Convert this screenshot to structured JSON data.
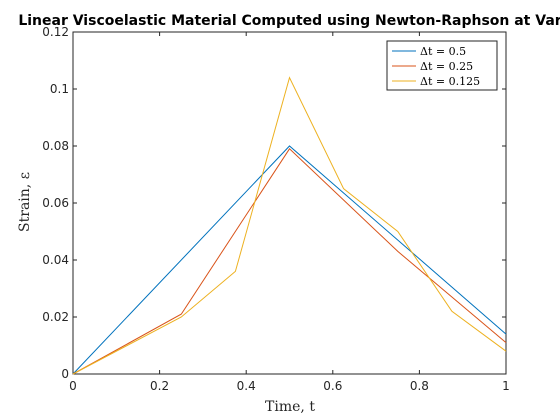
{
  "chart_data": {
    "type": "line",
    "title": "Linear Viscoelastic Material Computed using Newton-Raphson at Var",
    "xlabel": "Time, t",
    "ylabel": "Strain, ε",
    "xlim": [
      0,
      1
    ],
    "ylim": [
      0,
      0.12
    ],
    "xticks": [
      "0",
      "0.2",
      "0.4",
      "0.6",
      "0.8",
      "1"
    ],
    "yticks": [
      "0",
      "0.02",
      "0.04",
      "0.06",
      "0.08",
      "0.1",
      "0.12"
    ],
    "grid": false,
    "legend_position": "top-right",
    "series": [
      {
        "name": "Δt = 0.5",
        "color": "#0072BD",
        "x": [
          0,
          0.5,
          1
        ],
        "y": [
          0,
          0.08,
          0.014
        ]
      },
      {
        "name": "Δt = 0.25",
        "color": "#D95319",
        "x": [
          0,
          0.25,
          0.5,
          0.75,
          1
        ],
        "y": [
          0,
          0.021,
          0.079,
          0.043,
          0.011
        ]
      },
      {
        "name": "Δt = 0.125",
        "color": "#EDB120",
        "x": [
          0,
          0.125,
          0.25,
          0.375,
          0.5,
          0.625,
          0.75,
          0.875,
          1
        ],
        "y": [
          0,
          0.01,
          0.02,
          0.036,
          0.104,
          0.065,
          0.05,
          0.022,
          0.008
        ]
      }
    ]
  }
}
